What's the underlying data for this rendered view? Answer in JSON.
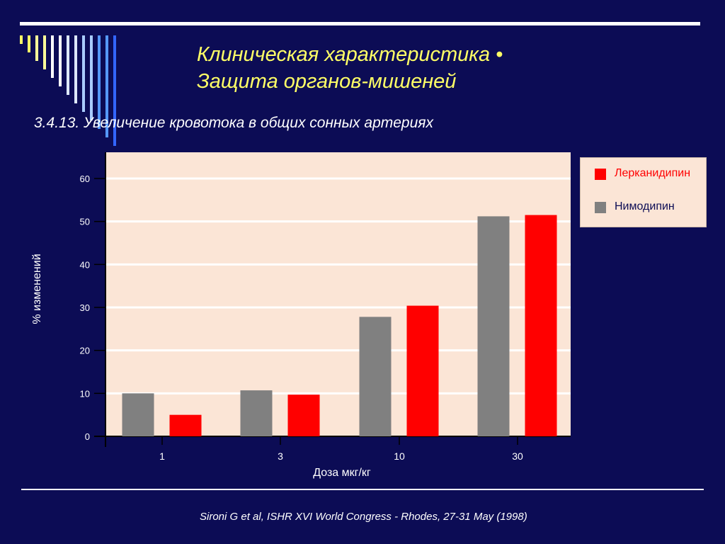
{
  "slide": {
    "title_lines": [
      "Клиническая характеристика •",
      "Защита органов-мишеней"
    ],
    "subtitle": "3.4.13. Увеличение кровотока в общих сонных артериях",
    "citation": "Sironi G et al, ISHR XVI World Congress - Rhodes, 27-31 May (1998)",
    "colors": {
      "background": "#0c0c55",
      "title": "#ffff66",
      "plot_background": "#fbe5d6",
      "stripes": [
        "#ffff66",
        "#ffff99",
        "#ffffff",
        "#dde8ff",
        "#aaccff",
        "#5599ff",
        "#3366ff"
      ]
    }
  },
  "chart_data": {
    "type": "bar",
    "title": "",
    "xlabel": "Доза мкг/кг",
    "ylabel": "% изменений",
    "categories": [
      "1",
      "3",
      "10",
      "30"
    ],
    "series": [
      {
        "name": "Нимодипин",
        "color": "#808080",
        "values": [
          10,
          10.7,
          27.8,
          51.2
        ]
      },
      {
        "name": "Лерканидипин",
        "color": "#ff0000",
        "values": [
          5,
          9.7,
          30.4,
          51.5
        ]
      }
    ],
    "ylim": [
      0,
      65
    ],
    "yticks": [
      "0",
      "10",
      "20",
      "30",
      "40",
      "50",
      "60"
    ],
    "ytick_values": [
      0,
      10,
      20,
      30,
      40,
      50,
      60
    ],
    "grid": true,
    "legend_position": "right",
    "legend_order": [
      "Лерканидипин",
      "Нимодипин"
    ]
  }
}
